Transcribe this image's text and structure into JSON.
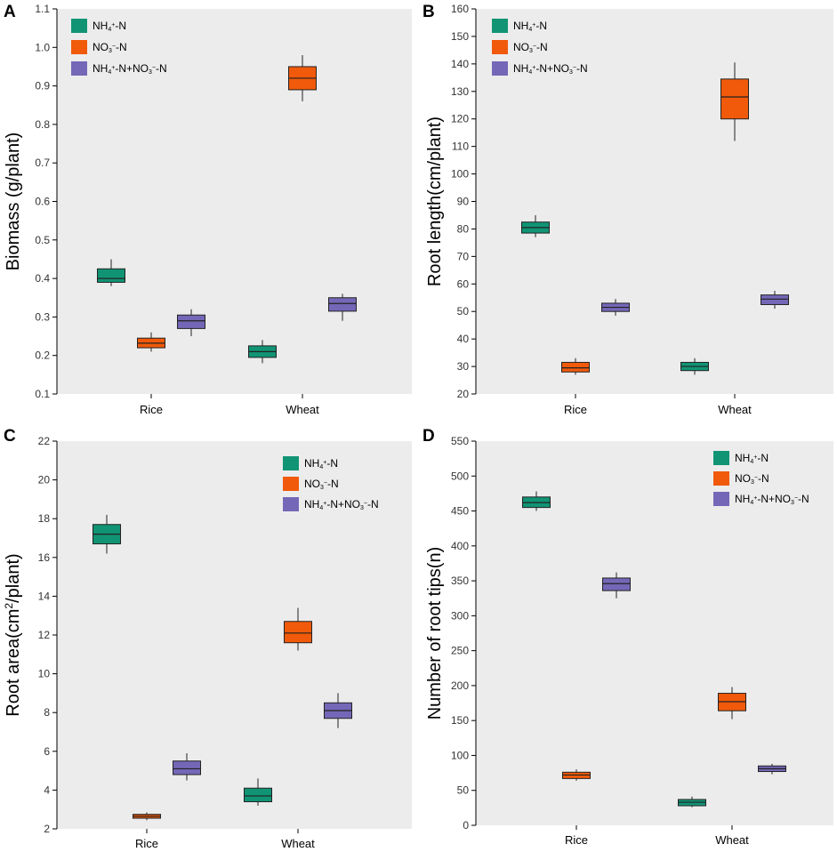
{
  "colors": {
    "panel_bg": "#ececec",
    "axis": "#000000",
    "series": [
      "#119474",
      "#f05a0a",
      "#7567b7"
    ]
  },
  "legend_labels": [
    {
      "name": "NH4+-N",
      "parts": [
        [
          "NH",
          ""
        ],
        [
          "4",
          "sub"
        ],
        [
          "+",
          "sup"
        ],
        [
          "-N",
          ""
        ]
      ]
    },
    {
      "name": "NO3−-N",
      "parts": [
        [
          "NO",
          ""
        ],
        [
          "3",
          "sub"
        ],
        [
          "−",
          "sup"
        ],
        [
          "-N",
          ""
        ]
      ]
    },
    {
      "name": "NH4+-N+NO3−-N",
      "parts": [
        [
          "NH",
          ""
        ],
        [
          "4",
          "sub"
        ],
        [
          "+",
          "sup"
        ],
        [
          "-N+NO",
          ""
        ],
        [
          "3",
          "sub"
        ],
        [
          "−",
          "sup"
        ],
        [
          "-N",
          ""
        ]
      ]
    }
  ],
  "chart_data": [
    {
      "id": "A",
      "panel_label": "A",
      "type": "boxplot",
      "ylabel": "Biomass (g/plant)",
      "ylabel_parts": [
        [
          "Biomass (g/plant)",
          ""
        ]
      ],
      "ylim": [
        0.1,
        1.1
      ],
      "yticks": [
        0.1,
        0.2,
        0.3,
        0.4,
        0.5,
        0.6,
        0.7,
        0.8,
        0.9,
        1.0,
        1.1
      ],
      "tick_decimals": 1,
      "categories": [
        "Rice",
        "Wheat"
      ],
      "legend_position": "top-left",
      "series": [
        {
          "name": "NH4+-N",
          "boxes": [
            {
              "category": "Rice",
              "min": 0.38,
              "q1": 0.39,
              "median": 0.4,
              "q3": 0.425,
              "max": 0.45
            },
            {
              "category": "Wheat",
              "min": 0.18,
              "q1": 0.195,
              "median": 0.21,
              "q3": 0.225,
              "max": 0.24
            }
          ]
        },
        {
          "name": "NO3−-N",
          "boxes": [
            {
              "category": "Rice",
              "min": 0.21,
              "q1": 0.22,
              "median": 0.232,
              "q3": 0.245,
              "max": 0.26
            },
            {
              "category": "Wheat",
              "min": 0.86,
              "q1": 0.89,
              "median": 0.92,
              "q3": 0.95,
              "max": 0.98
            }
          ]
        },
        {
          "name": "NH4+-N+NO3−-N",
          "boxes": [
            {
              "category": "Rice",
              "min": 0.25,
              "q1": 0.27,
              "median": 0.29,
              "q3": 0.305,
              "max": 0.32
            },
            {
              "category": "Wheat",
              "min": 0.29,
              "q1": 0.315,
              "median": 0.335,
              "q3": 0.35,
              "max": 0.36
            }
          ]
        }
      ]
    },
    {
      "id": "B",
      "panel_label": "B",
      "type": "boxplot",
      "ylabel": "Root length(cm/plant)",
      "ylabel_parts": [
        [
          "Root length(cm/plant)",
          ""
        ]
      ],
      "ylim": [
        20,
        160
      ],
      "yticks": [
        20,
        30,
        40,
        50,
        60,
        70,
        80,
        90,
        100,
        110,
        120,
        130,
        140,
        150,
        160
      ],
      "tick_decimals": 0,
      "categories": [
        "Rice",
        "Wheat"
      ],
      "legend_position": "top-left",
      "series": [
        {
          "name": "NH4+-N",
          "boxes": [
            {
              "category": "Rice",
              "min": 77,
              "q1": 78.5,
              "median": 80.5,
              "q3": 82.5,
              "max": 85
            },
            {
              "category": "Wheat",
              "min": 27,
              "q1": 28.5,
              "median": 30,
              "q3": 31.5,
              "max": 33
            }
          ]
        },
        {
          "name": "NO3−-N",
          "boxes": [
            {
              "category": "Rice",
              "min": 27,
              "q1": 28,
              "median": 29.5,
              "q3": 31.5,
              "max": 33
            },
            {
              "category": "Wheat",
              "min": 112,
              "q1": 120,
              "median": 128,
              "q3": 134.5,
              "max": 140.5
            }
          ]
        },
        {
          "name": "NH4+-N+NO3−-N",
          "boxes": [
            {
              "category": "Rice",
              "min": 48.5,
              "q1": 50,
              "median": 51.5,
              "q3": 53,
              "max": 54.5
            },
            {
              "category": "Wheat",
              "min": 51,
              "q1": 52.5,
              "median": 54.5,
              "q3": 56,
              "max": 57.5
            }
          ]
        }
      ]
    },
    {
      "id": "C",
      "panel_label": "C",
      "type": "boxplot",
      "ylabel": "Root area(cm2/plant)",
      "ylabel_parts": [
        [
          "Root area(cm",
          ""
        ],
        [
          "2",
          "sup"
        ],
        [
          "/plant)",
          ""
        ]
      ],
      "ylim": [
        2,
        22
      ],
      "yticks": [
        2,
        4,
        6,
        8,
        10,
        12,
        14,
        16,
        18,
        20,
        22
      ],
      "tick_decimals": 0,
      "categories": [
        "Rice",
        "Wheat"
      ],
      "legend_position": "top-right",
      "series": [
        {
          "name": "NH4+-N",
          "boxes": [
            {
              "category": "Rice",
              "min": 16.2,
              "q1": 16.7,
              "median": 17.2,
              "q3": 17.7,
              "max": 18.2
            },
            {
              "category": "Wheat",
              "min": 3.2,
              "q1": 3.4,
              "median": 3.7,
              "q3": 4.1,
              "max": 4.6
            }
          ]
        },
        {
          "name": "NO3−-N",
          "boxes": [
            {
              "category": "Rice",
              "min": 2.45,
              "q1": 2.55,
              "median": 2.65,
              "q3": 2.75,
              "max": 2.85
            },
            {
              "category": "Wheat",
              "min": 11.2,
              "q1": 11.6,
              "median": 12.1,
              "q3": 12.7,
              "max": 13.4
            }
          ]
        },
        {
          "name": "NH4+-N+NO3−-N",
          "boxes": [
            {
              "category": "Rice",
              "min": 4.5,
              "q1": 4.8,
              "median": 5.1,
              "q3": 5.5,
              "max": 5.9
            },
            {
              "category": "Wheat",
              "min": 7.2,
              "q1": 7.7,
              "median": 8.1,
              "q3": 8.5,
              "max": 9.0
            }
          ]
        }
      ]
    },
    {
      "id": "D",
      "panel_label": "D",
      "type": "boxplot",
      "ylabel": "Number of root tips(n)",
      "ylabel_parts": [
        [
          "Number of root tips(n)",
          ""
        ]
      ],
      "ylim": [
        0,
        550
      ],
      "yticks": [
        0,
        50,
        100,
        150,
        200,
        250,
        300,
        350,
        400,
        450,
        500,
        550
      ],
      "tick_decimals": 0,
      "categories": [
        "Rice",
        "Wheat"
      ],
      "legend_position": "top-right",
      "series": [
        {
          "name": "NH4+-N",
          "boxes": [
            {
              "category": "Rice",
              "min": 450,
              "q1": 455,
              "median": 462,
              "q3": 470,
              "max": 478
            },
            {
              "category": "Wheat",
              "min": 26,
              "q1": 28,
              "median": 33,
              "q3": 37,
              "max": 41
            }
          ]
        },
        {
          "name": "NO3−-N",
          "boxes": [
            {
              "category": "Rice",
              "min": 64,
              "q1": 67,
              "median": 72,
              "q3": 76,
              "max": 80
            },
            {
              "category": "Wheat",
              "min": 152,
              "q1": 164,
              "median": 177,
              "q3": 189,
              "max": 198
            }
          ]
        },
        {
          "name": "NH4+-N+NO3−-N",
          "boxes": [
            {
              "category": "Rice",
              "min": 325,
              "q1": 336,
              "median": 346,
              "q3": 354,
              "max": 362
            },
            {
              "category": "Wheat",
              "min": 73,
              "q1": 77,
              "median": 81,
              "q3": 85,
              "max": 88
            }
          ]
        }
      ]
    }
  ]
}
